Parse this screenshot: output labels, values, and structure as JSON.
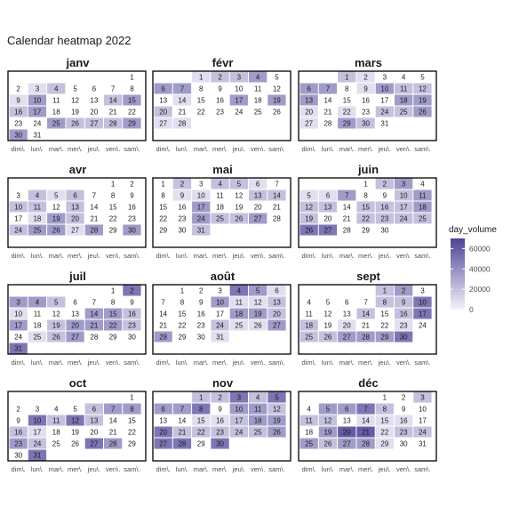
{
  "chart_data": {
    "type": "heatmap",
    "title": "Calendar heatmap 2022",
    "year": 2022,
    "weekday_labels": [
      "dim\\.",
      "lun\\.",
      "mar\\.",
      "mer\\.",
      "jeu\\.",
      "ven\\.",
      "sam\\."
    ],
    "fill_levels": {
      "1": 8000,
      "2": 20000,
      "3": 35000,
      "4": 50000,
      "5": 60000
    },
    "legend": {
      "title": "day_volume",
      "ticks": [
        0,
        20000,
        40000,
        60000
      ],
      "range": [
        0,
        70000
      ],
      "position": "right"
    },
    "months": [
      {
        "name": "janv",
        "filled": {
          "3": 1,
          "4": 2,
          "9": 1,
          "10": 3,
          "14": 2,
          "15": 3,
          "16": 2,
          "17": 3,
          "25": 3,
          "26": 2,
          "27": 2,
          "28": 2,
          "29": 3,
          "30": 3
        }
      },
      {
        "name": "févr",
        "filled": {
          "1": 1,
          "2": 2,
          "3": 2,
          "4": 3,
          "6": 3,
          "7": 3,
          "14": 1,
          "17": 3,
          "19": 3,
          "20": 2,
          "27": 1,
          "28": 1
        }
      },
      {
        "name": "mars",
        "filled": {
          "1": 2,
          "2": 1,
          "6": 3,
          "7": 3,
          "9": 1,
          "10": 3,
          "11": 2,
          "12": 2,
          "13": 3,
          "18": 3,
          "19": 3,
          "20": 1,
          "22": 1,
          "24": 2,
          "25": 2,
          "26": 3,
          "27": 1,
          "29": 3,
          "30": 2
        }
      },
      {
        "name": "avr",
        "filled": {
          "4": 2,
          "5": 1,
          "6": 2,
          "10": 2,
          "11": 2,
          "13": 2,
          "18": 1,
          "19": 3,
          "20": 2,
          "24": 2,
          "25": 3,
          "26": 3,
          "27": 1,
          "28": 3,
          "30": 3
        }
      },
      {
        "name": "mai",
        "filled": {
          "2": 2,
          "4": 2,
          "5": 2,
          "6": 1,
          "9": 1,
          "10": 1,
          "13": 2,
          "14": 2,
          "17": 3,
          "24": 3,
          "25": 2,
          "26": 2,
          "27": 3,
          "31": 2
        }
      },
      {
        "name": "juin",
        "filled": {
          "2": 2,
          "3": 3,
          "5": 1,
          "6": 1,
          "7": 3,
          "10": 2,
          "11": 3,
          "12": 2,
          "13": 2,
          "15": 2,
          "16": 2,
          "17": 2,
          "18": 3,
          "19": 2,
          "22": 2,
          "23": 2,
          "24": 2,
          "25": 2,
          "26": 4,
          "27": 4
        }
      },
      {
        "name": "juil",
        "filled": {
          "2": 4,
          "3": 3,
          "4": 3,
          "5": 2,
          "10": 1,
          "14": 3,
          "15": 3,
          "16": 2,
          "17": 3,
          "19": 2,
          "20": 3,
          "21": 3,
          "22": 3,
          "23": 2,
          "25": 1,
          "26": 2,
          "27": 3,
          "31": 4
        }
      },
      {
        "name": "août",
        "filled": {
          "4": 4,
          "5": 3,
          "6": 1,
          "10": 3,
          "11": 1,
          "12": 1,
          "13": 2,
          "18": 3,
          "19": 3,
          "20": 2,
          "24": 2,
          "25": 1,
          "26": 1,
          "27": 3,
          "28": 3,
          "31": 1
        }
      },
      {
        "name": "sept",
        "filled": {
          "1": 2,
          "2": 3,
          "8": 2,
          "9": 2,
          "10": 4,
          "14": 2,
          "16": 2,
          "17": 4,
          "18": 2,
          "20": 1,
          "23": 1,
          "25": 2,
          "26": 2,
          "27": 3,
          "28": 3,
          "29": 3,
          "30": 4
        }
      },
      {
        "name": "oct",
        "filled": {
          "6": 2,
          "7": 3,
          "8": 3,
          "10": 4,
          "11": 2,
          "12": 4,
          "13": 2,
          "16": 2,
          "17": 1,
          "23": 3,
          "24": 2,
          "27": 4,
          "28": 3,
          "31": 4
        }
      },
      {
        "name": "nov",
        "filled": {
          "1": 2,
          "2": 2,
          "3": 4,
          "4": 2,
          "5": 4,
          "6": 3,
          "7": 3,
          "8": 4,
          "10": 3,
          "11": 3,
          "12": 2,
          "15": 1,
          "16": 1,
          "17": 2,
          "18": 3,
          "19": 3,
          "20": 4,
          "21": 2,
          "22": 2,
          "23": 2,
          "24": 2,
          "25": 2,
          "26": 3,
          "27": 4,
          "28": 4,
          "30": 4
        }
      },
      {
        "name": "déc",
        "filled": {
          "3": 2,
          "5": 3,
          "6": 3,
          "7": 4,
          "8": 2,
          "11": 2,
          "12": 2,
          "14": 1,
          "15": 1,
          "16": 1,
          "19": 3,
          "20": 5,
          "21": 5,
          "22": 1,
          "23": 2,
          "24": 2,
          "25": 3,
          "26": 2,
          "27": 3,
          "28": 3,
          "29": 1
        }
      }
    ]
  },
  "colors": {
    "scale_low": "#f4f3fb",
    "scale_high": "#4c4496",
    "border": "#000000",
    "text": "#1a1a1a"
  }
}
